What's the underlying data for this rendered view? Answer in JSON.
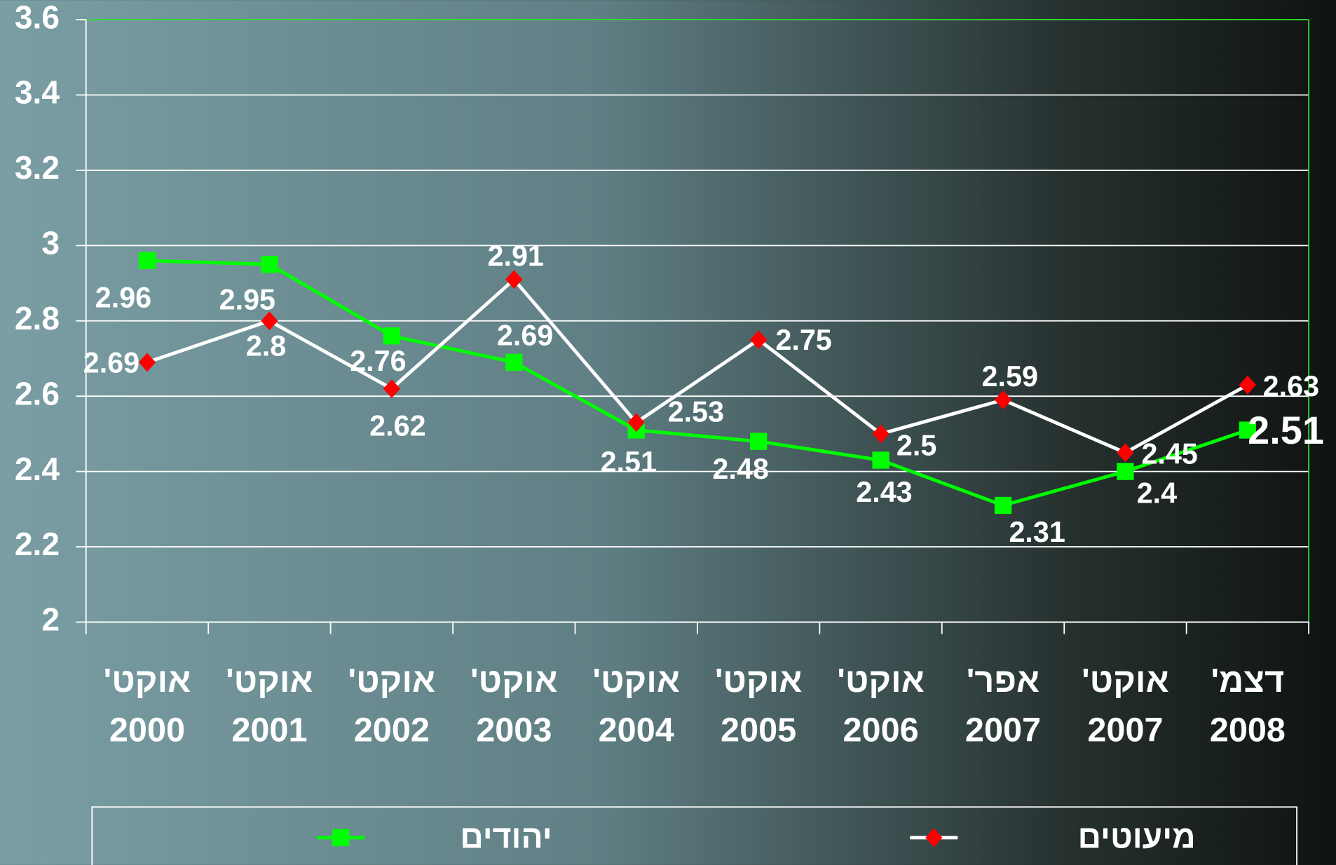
{
  "chart_data": {
    "type": "line",
    "categories": [
      "אוקט'\n2000",
      "אוקט'\n2001",
      "אוקט'\n2002",
      "אוקט'\n2003",
      "אוקט'\n2004",
      "אוקט'\n2005",
      "אוקט'\n2006",
      "אפר'\n2007",
      "אוקט'\n2007",
      "דצמ'\n2008"
    ],
    "series": [
      {
        "name": "יהודים",
        "color": "#00ff00",
        "line_color": "#00ff00",
        "marker": "square",
        "values": [
          2.96,
          2.95,
          2.76,
          2.69,
          2.51,
          2.48,
          2.43,
          2.31,
          2.4,
          2.51
        ]
      },
      {
        "name": "מיעוטים",
        "color": "#ff0000",
        "line_color": "#ffffff",
        "marker": "diamond",
        "values": [
          2.69,
          2.8,
          2.62,
          2.91,
          2.53,
          2.75,
          2.5,
          2.59,
          2.45,
          2.63
        ]
      }
    ],
    "ylim": [
      2,
      3.6
    ],
    "yticks": [
      2,
      2.2,
      2.4,
      2.6,
      2.8,
      3,
      3.2,
      3.4,
      3.6
    ],
    "grid": true,
    "legend": "bottom"
  }
}
